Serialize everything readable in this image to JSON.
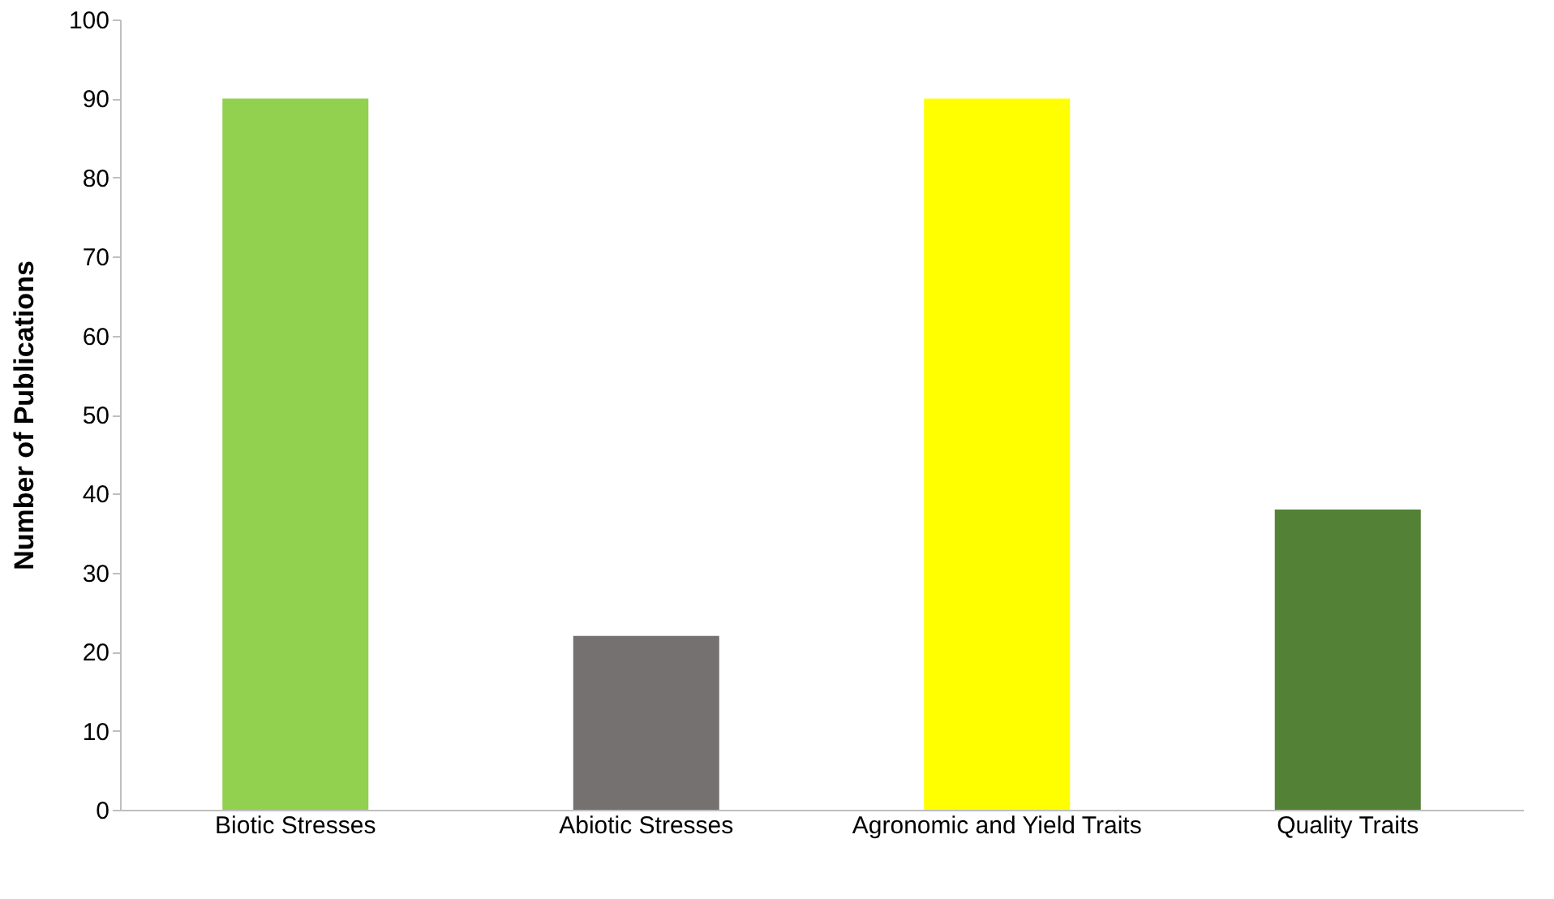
{
  "chart_data": {
    "type": "bar",
    "ylabel": "Number of Publications",
    "categories": [
      "Biotic Stresses",
      "Abiotic Stresses",
      "Agronomic and Yield Traits",
      "Quality Traits"
    ],
    "values": [
      90,
      22,
      90,
      38
    ],
    "colors": [
      "#92d050",
      "#767171",
      "#ffff00",
      "#538135"
    ],
    "ylim": [
      0,
      100
    ],
    "yticks": [
      0,
      10,
      20,
      30,
      40,
      50,
      60,
      70,
      80,
      90,
      100
    ],
    "grid": false,
    "legend": false
  }
}
